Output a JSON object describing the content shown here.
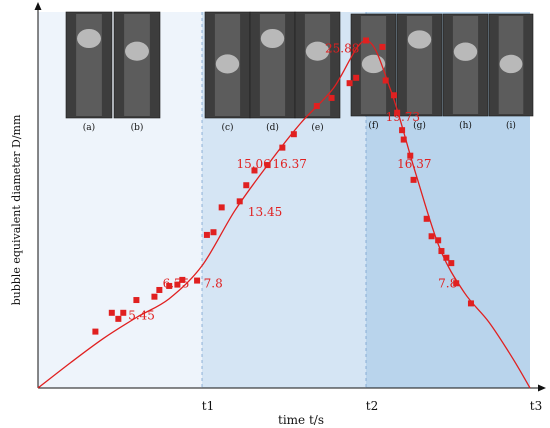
{
  "chart_data": {
    "type": "scatter",
    "xlabel": "time t/s",
    "ylabel": "bubble equivalent diameter D/mm",
    "xlim": [
      0,
      3
    ],
    "ylim": [
      0,
      28
    ],
    "x_ticks": [
      {
        "value": 1,
        "label": "t1"
      },
      {
        "value": 2,
        "label": "t2"
      },
      {
        "value": 3,
        "label": "t3"
      }
    ],
    "grid": false,
    "regions": [
      {
        "from": 0,
        "to": 1,
        "color": "#eef4fb"
      },
      {
        "from": 1,
        "to": 2,
        "color": "#d5e5f4"
      },
      {
        "from": 2,
        "to": 3,
        "color": "#b9d4ec"
      }
    ],
    "points": [
      [
        0.35,
        4.2
      ],
      [
        0.45,
        5.6
      ],
      [
        0.49,
        5.15
      ],
      [
        0.52,
        5.6
      ],
      [
        0.6,
        6.55
      ],
      [
        0.71,
        6.8
      ],
      [
        0.74,
        7.3
      ],
      [
        0.8,
        7.6
      ],
      [
        0.85,
        7.7
      ],
      [
        0.88,
        8.05
      ],
      [
        0.97,
        8.0
      ],
      [
        1.03,
        11.4
      ],
      [
        1.07,
        11.6
      ],
      [
        1.12,
        13.45
      ],
      [
        1.23,
        13.9
      ],
      [
        1.27,
        15.1
      ],
      [
        1.32,
        16.2
      ],
      [
        1.4,
        16.6
      ],
      [
        1.49,
        17.9
      ],
      [
        1.56,
        18.9
      ],
      [
        1.7,
        21.0
      ],
      [
        1.79,
        21.6
      ],
      [
        1.9,
        22.7
      ],
      [
        1.94,
        23.1
      ],
      [
        2.0,
        25.88
      ],
      [
        2.1,
        25.4
      ],
      [
        2.12,
        22.9
      ],
      [
        2.17,
        21.8
      ],
      [
        2.19,
        20.5
      ],
      [
        2.22,
        19.2
      ],
      [
        2.23,
        18.5
      ],
      [
        2.27,
        17.3
      ],
      [
        2.29,
        15.5
      ],
      [
        2.37,
        12.6
      ],
      [
        2.4,
        11.3
      ],
      [
        2.44,
        11.0
      ],
      [
        2.46,
        10.2
      ],
      [
        2.49,
        9.7
      ],
      [
        2.52,
        9.3
      ],
      [
        2.55,
        7.8
      ],
      [
        2.64,
        6.3
      ]
    ],
    "fit_curve": [
      [
        0,
        0
      ],
      [
        0.2,
        1.9
      ],
      [
        0.4,
        3.7
      ],
      [
        0.6,
        5.25
      ],
      [
        0.8,
        6.65
      ],
      [
        1.0,
        9.1
      ],
      [
        1.2,
        13.2
      ],
      [
        1.4,
        16.6
      ],
      [
        1.6,
        19.7
      ],
      [
        1.8,
        22.3
      ],
      [
        2.0,
        25.88
      ],
      [
        2.15,
        22.2
      ],
      [
        2.3,
        16.1
      ],
      [
        2.45,
        10.4
      ],
      [
        2.6,
        7.1
      ],
      [
        2.75,
        4.9
      ],
      [
        2.9,
        2.1
      ],
      [
        3.0,
        0
      ]
    ],
    "series_color": "#e02020",
    "annotations": [
      {
        "text": "6.75",
        "x": 0.76,
        "y": 7.5
      },
      {
        "text": "7.8",
        "x": 1.01,
        "y": 7.5
      },
      {
        "text": "5.45",
        "x": 0.55,
        "y": 5.1
      },
      {
        "text": "15.06",
        "x": 1.21,
        "y": 16.4
      },
      {
        "text": "16.37",
        "x": 1.43,
        "y": 16.4
      },
      {
        "text": "13.45",
        "x": 1.28,
        "y": 12.8
      },
      {
        "text": "25.88",
        "x": 1.75,
        "y": 25.0
      },
      {
        "text": "19.73",
        "x": 2.12,
        "y": 19.9
      },
      {
        "text": "16.37",
        "x": 2.19,
        "y": 16.4
      },
      {
        "text": "7.8",
        "x": 2.44,
        "y": 7.5
      }
    ]
  },
  "inset_images": [
    {
      "label": "(a)",
      "name": "inset-image-a"
    },
    {
      "label": "(b)",
      "name": "inset-image-b"
    },
    {
      "label": "(c)",
      "name": "inset-image-c"
    },
    {
      "label": "(d)",
      "name": "inset-image-d"
    },
    {
      "label": "(e)",
      "name": "inset-image-e"
    },
    {
      "label": "(f)",
      "name": "inset-image-f"
    },
    {
      "label": "(g)",
      "name": "inset-image-g"
    },
    {
      "label": "(h)",
      "name": "inset-image-h"
    },
    {
      "label": "(i)",
      "name": "inset-image-i"
    }
  ]
}
